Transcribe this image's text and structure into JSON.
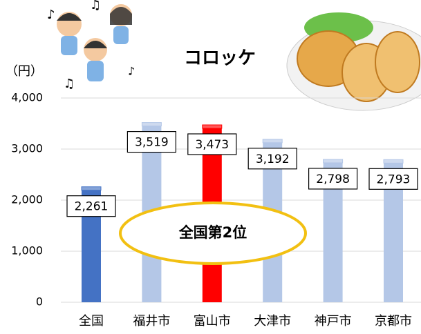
{
  "chart_data": {
    "type": "bar",
    "title": "コロッケ",
    "y_label": "（円）",
    "annotation": "全国第2位",
    "categories": [
      "全国",
      "福井市",
      "富山市",
      "大津市",
      "神戸市",
      "京都市"
    ],
    "values": [
      2261,
      3519,
      3473,
      3192,
      2798,
      2793
    ],
    "value_labels": [
      "2,261",
      "3,519",
      "3,473",
      "3,192",
      "2,798",
      "2,793"
    ],
    "colors": [
      "#4472c4",
      "#b4c7e7",
      "#ff0000",
      "#b4c7e7",
      "#b4c7e7",
      "#b4c7e7"
    ],
    "ylim": [
      0,
      4000
    ],
    "yticks": [
      0,
      {
        "value": 1000,
        "label": "1,000"
      },
      {
        "value": 2000,
        "label": "2,000"
      },
      {
        "value": 3000,
        "label": "3,000"
      },
      {
        "value": 4000,
        "label": "4,000"
      }
    ],
    "grid": true
  }
}
